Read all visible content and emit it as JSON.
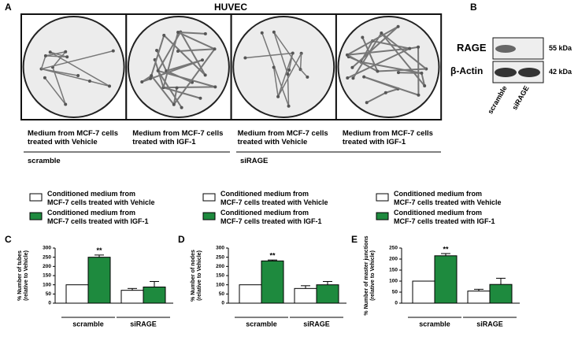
{
  "panel_a": {
    "label": "A",
    "title": "HUVEC",
    "captions": [
      "Medium from MCF-7 cells\ntreated with Vehicle",
      "Medium from MCF-7 cells\ntreated with IGF-1",
      "Medium from MCF-7 cells\ntreated with Vehicle",
      "Medium from MCF-7 cells\ntreated with IGF-1"
    ],
    "groups": [
      "scramble",
      "siRAGE"
    ]
  },
  "panel_b": {
    "label": "B",
    "rows": [
      {
        "name": "RAGE",
        "size": "55 kDa"
      },
      {
        "name": "β-Actin",
        "size": "42 kDa"
      }
    ],
    "lanes": [
      "scramble",
      "siRAGE"
    ]
  },
  "chart_data": [
    {
      "type": "bar",
      "panel": "C",
      "ylabel": "% Number of tubes\n(relative to Vehicle)",
      "categories": [
        "scramble",
        "siRAGE"
      ],
      "series": [
        {
          "name": "Conditioned medium from\nMCF-7 cells treated with Vehicle",
          "color": "#ffffff",
          "values": [
            100,
            70
          ],
          "errors": [
            null,
            10
          ]
        },
        {
          "name": "Conditioned medium from\nMCF-7 cells treated with IGF-1",
          "color": "#1e8a3e",
          "values": [
            250,
            88
          ],
          "errors": [
            12,
            30
          ],
          "significance": [
            "**",
            null
          ]
        }
      ],
      "ylim": [
        0,
        300
      ],
      "yticks": [
        0,
        50,
        100,
        150,
        200,
        250,
        300
      ]
    },
    {
      "type": "bar",
      "panel": "D",
      "ylabel": "% Number of nodes\n(relative to Vehicle)",
      "categories": [
        "scramble",
        "siRAGE"
      ],
      "series": [
        {
          "name": "Conditioned medium from\nMCF-7 cells treated with Vehicle",
          "color": "#ffffff",
          "values": [
            100,
            80
          ],
          "errors": [
            null,
            15
          ]
        },
        {
          "name": "Conditioned medium from\nMCF-7 cells treated with IGF-1",
          "color": "#1e8a3e",
          "values": [
            230,
            100
          ],
          "errors": [
            5,
            18
          ],
          "significance": [
            "**",
            null
          ]
        }
      ],
      "ylim": [
        0,
        300
      ],
      "yticks": [
        0,
        50,
        100,
        150,
        200,
        250,
        300
      ]
    },
    {
      "type": "bar",
      "panel": "E",
      "ylabel": "% Number of master junctions\n(relative to Vehicle)",
      "categories": [
        "scramble",
        "siRAGE"
      ],
      "series": [
        {
          "name": "Conditioned medium from\nMCF-7 cells treated with Vehicle",
          "color": "#ffffff",
          "values": [
            100,
            55
          ],
          "errors": [
            null,
            8
          ]
        },
        {
          "name": "Conditioned medium from\nMCF-7 cells treated with IGF-1",
          "color": "#1e8a3e",
          "values": [
            215,
            85
          ],
          "errors": [
            10,
            28
          ],
          "significance": [
            "**",
            null
          ]
        }
      ],
      "ylim": [
        0,
        250
      ],
      "yticks": [
        0,
        50,
        100,
        150,
        200,
        250
      ]
    }
  ]
}
